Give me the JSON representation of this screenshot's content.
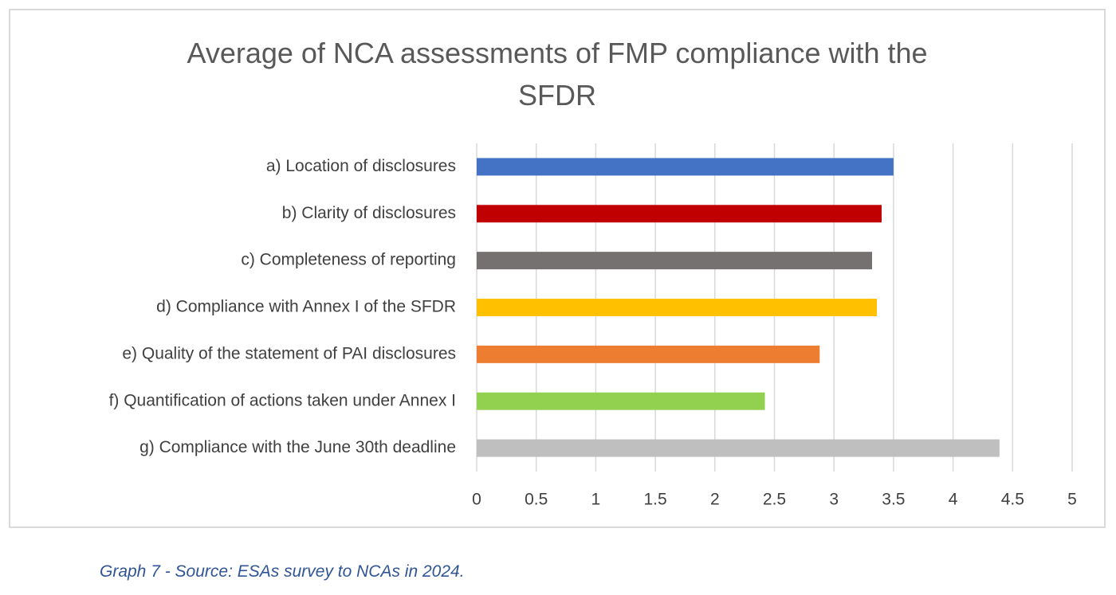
{
  "chart_data": {
    "type": "barh",
    "title": "Average of NCA assessments of FMP compliance with the SFDR",
    "categories": [
      "a) Location of disclosures",
      "b) Clarity of disclosures",
      "c) Completeness of reporting",
      "d) Compliance with Annex I of the SFDR",
      "e) Quality of the statement of PAI disclosures",
      "f) Quantification of actions taken under Annex I",
      "g) Compliance with the June 30th deadline"
    ],
    "values": [
      3.5,
      3.4,
      3.32,
      3.36,
      2.88,
      2.42,
      4.39
    ],
    "colors": [
      "#4472c4",
      "#c00000",
      "#767171",
      "#ffc000",
      "#ed7d31",
      "#92d050",
      "#bfbfbf"
    ],
    "xlim": [
      0,
      5
    ],
    "xticks": [
      0,
      0.5,
      1,
      1.5,
      2,
      2.5,
      3,
      3.5,
      4,
      4.5,
      5
    ],
    "grid": true,
    "caption": "Graph 7 - Source: ESAs survey to NCAs in 2024."
  }
}
